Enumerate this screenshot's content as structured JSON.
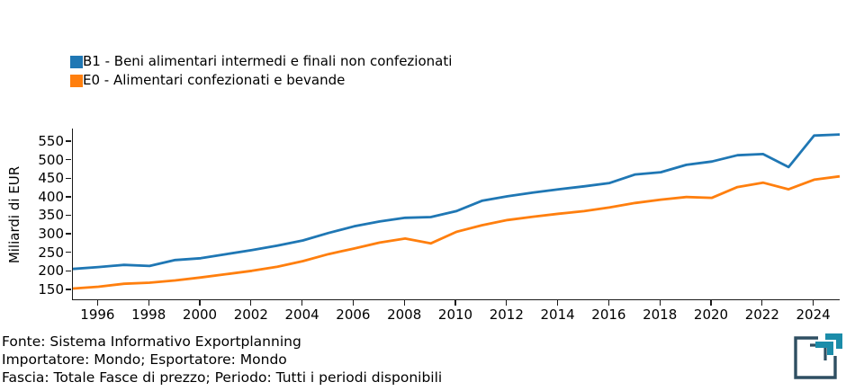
{
  "legend": {
    "items": [
      {
        "label": "B1 - Beni alimentari intermedi e finali non confezionati",
        "color": "#1f77b4"
      },
      {
        "label": "E0 - Alimentari confezionati e bevande",
        "color": "#ff7f0e"
      }
    ]
  },
  "chart_data": {
    "type": "line",
    "title": "",
    "xlabel": "",
    "ylabel": "Miliardi di EUR",
    "grid": false,
    "legend_position": "top-left",
    "xlim": [
      1995,
      2025
    ],
    "ylim": [
      123,
      584
    ],
    "yticks": [
      150,
      200,
      250,
      300,
      350,
      400,
      450,
      500,
      550
    ],
    "xticks": [
      1996,
      1998,
      2000,
      2002,
      2004,
      2006,
      2008,
      2010,
      2012,
      2014,
      2016,
      2018,
      2020,
      2022,
      2024
    ],
    "x": [
      1995,
      1996,
      1997,
      1998,
      1999,
      2000,
      2001,
      2002,
      2003,
      2004,
      2005,
      2006,
      2007,
      2008,
      2009,
      2010,
      2011,
      2012,
      2013,
      2014,
      2015,
      2016,
      2017,
      2018,
      2019,
      2020,
      2021,
      2022,
      2023,
      2024,
      2025
    ],
    "series": [
      {
        "name": "B1 - Beni alimentari intermedi e finali non confezionati",
        "color": "#1f77b4",
        "values": [
          205,
          210,
          216,
          213,
          229,
          234,
          245,
          256,
          268,
          282,
          302,
          320,
          333,
          343,
          345,
          361,
          389,
          401,
          411,
          420,
          428,
          437,
          460,
          466,
          486,
          495,
          512,
          515,
          480,
          565,
          568
        ]
      },
      {
        "name": "E0 - Alimentari confezionati e bevande",
        "color": "#ff7f0e",
        "values": [
          152,
          157,
          165,
          168,
          174,
          182,
          191,
          200,
          211,
          226,
          245,
          260,
          276,
          287,
          274,
          305,
          323,
          337,
          346,
          354,
          361,
          371,
          383,
          392,
          399,
          397,
          426,
          438,
          420,
          446,
          455
        ]
      }
    ]
  },
  "footer": {
    "lines": [
      "Fonte: Sistema Informativo Exportplanning",
      "Importatore: Mondo; Esportatore: Mondo",
      "Fascia: Totale Fasce di prezzo; Periodo: Tutti i periodi disponibili"
    ]
  },
  "logo": {
    "name": "exportplanning-logo",
    "teal": "#1b8ca9",
    "dark": "#2f4f62"
  }
}
